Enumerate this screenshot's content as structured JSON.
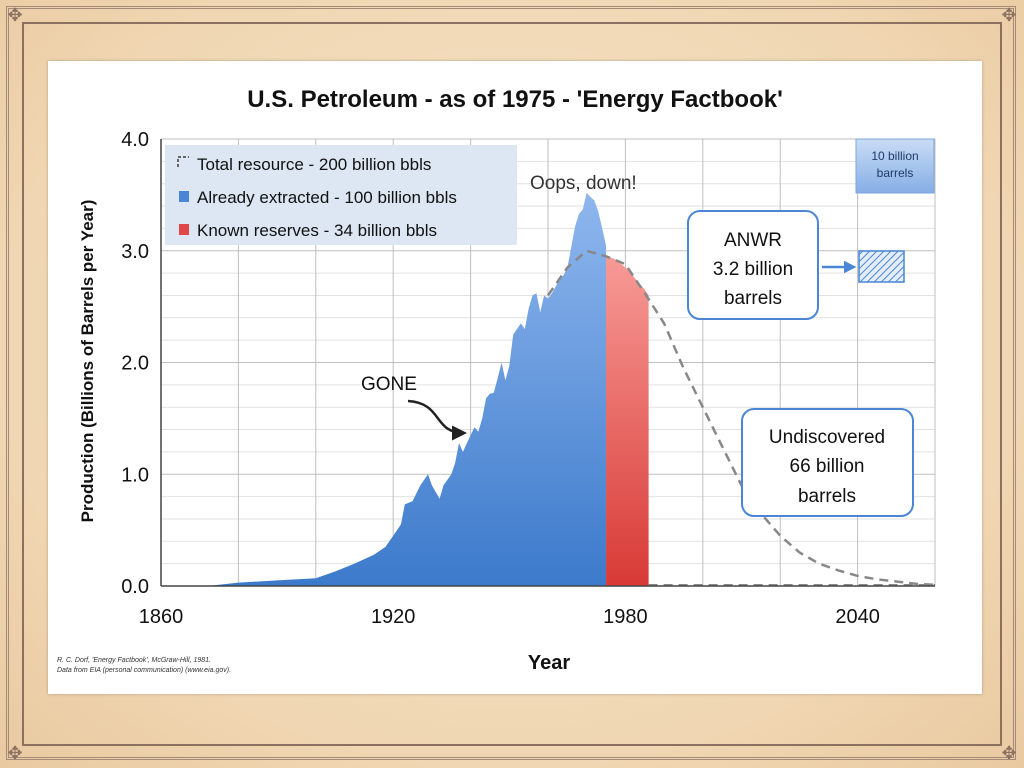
{
  "slide": {
    "oops_label": "Oops, down!",
    "credit_line1": "R. C. Dorf, 'Energy Factbook', McGraw-Hill, 1981.",
    "credit_line2": "Data from EIA (personal communication) (www.eia.gov)."
  },
  "chart_data": {
    "type": "area",
    "title": "U.S. Petroleum - as of 1975 - 'Energy Factbook'",
    "xlabel": "Year",
    "ylabel": "Production (Billions of Barrels per Year)",
    "xlim": [
      1860,
      2060
    ],
    "ylim": [
      0,
      4.0
    ],
    "x_ticks": [
      "1860",
      "1920",
      "1980",
      "2040"
    ],
    "y_ticks": [
      "0.0",
      "1.0",
      "2.0",
      "3.0",
      "4.0"
    ],
    "grid": true,
    "legend_position": "top-left",
    "legend": [
      {
        "label": "Total resource - 200 billion bbls",
        "style": "dashed"
      },
      {
        "label": "Already extracted - 100 billion bbls",
        "color": "#4a86d4"
      },
      {
        "label": "Known reserves - 34 billion bbls",
        "color": "#e04848"
      }
    ],
    "series": [
      {
        "name": "Already extracted - 100 billion bbls",
        "color": "#4a86d4",
        "x": [
          1860,
          1872,
          1880,
          1890,
          1900,
          1905,
          1910,
          1915,
          1918,
          1920,
          1922,
          1923,
          1925,
          1927,
          1929,
          1930,
          1932,
          1933,
          1935,
          1936,
          1937,
          1938,
          1940,
          1941,
          1942,
          1943,
          1944,
          1945,
          1946,
          1947,
          1948,
          1949,
          1950,
          1951,
          1952,
          1953,
          1954,
          1955,
          1956,
          1957,
          1958,
          1959,
          1960,
          1961,
          1962,
          1963,
          1964,
          1965,
          1966,
          1967,
          1968,
          1969,
          1970,
          1971,
          1972,
          1973,
          1974,
          1975
        ],
        "y": [
          0,
          0,
          0.03,
          0.05,
          0.07,
          0.13,
          0.2,
          0.28,
          0.35,
          0.45,
          0.55,
          0.73,
          0.76,
          0.9,
          1.0,
          0.9,
          0.78,
          0.9,
          1.0,
          1.1,
          1.28,
          1.2,
          1.35,
          1.42,
          1.38,
          1.5,
          1.68,
          1.72,
          1.73,
          1.86,
          2.0,
          1.84,
          1.97,
          2.25,
          2.3,
          2.35,
          2.3,
          2.48,
          2.6,
          2.62,
          2.45,
          2.6,
          2.57,
          2.62,
          2.68,
          2.75,
          2.78,
          2.85,
          3.03,
          3.22,
          3.33,
          3.37,
          3.52,
          3.48,
          3.45,
          3.35,
          3.2,
          3.05
        ]
      },
      {
        "name": "Known reserves - 34 billion bbls",
        "color": "#e04848",
        "x": [
          1975,
          1977,
          1979,
          1981,
          1983,
          1985,
          1986
        ],
        "y": [
          2.95,
          2.93,
          2.88,
          2.82,
          2.73,
          2.65,
          2.6
        ]
      },
      {
        "name": "Total resource - 200 billion bbls",
        "style": "dashed",
        "x": [
          1960,
          1965,
          1970,
          1975,
          1980,
          1985,
          1990,
          1995,
          2000,
          2005,
          2010,
          2015,
          2020,
          2025,
          2030,
          2035,
          2040,
          2045,
          2050,
          2055,
          2060
        ],
        "y": [
          2.6,
          2.85,
          3.0,
          2.95,
          2.88,
          2.62,
          2.35,
          1.95,
          1.6,
          1.25,
          0.9,
          0.65,
          0.45,
          0.3,
          0.2,
          0.14,
          0.09,
          0.06,
          0.04,
          0.02,
          0.01
        ]
      }
    ],
    "annotations": [
      {
        "text": "GONE"
      },
      {
        "lines": [
          "ANWR",
          "3.2 billion",
          "barrels"
        ]
      },
      {
        "lines": [
          "Undiscovered",
          "66 billion",
          "barrels"
        ]
      },
      {
        "lines": [
          "10 billion",
          "barrels"
        ]
      }
    ]
  }
}
